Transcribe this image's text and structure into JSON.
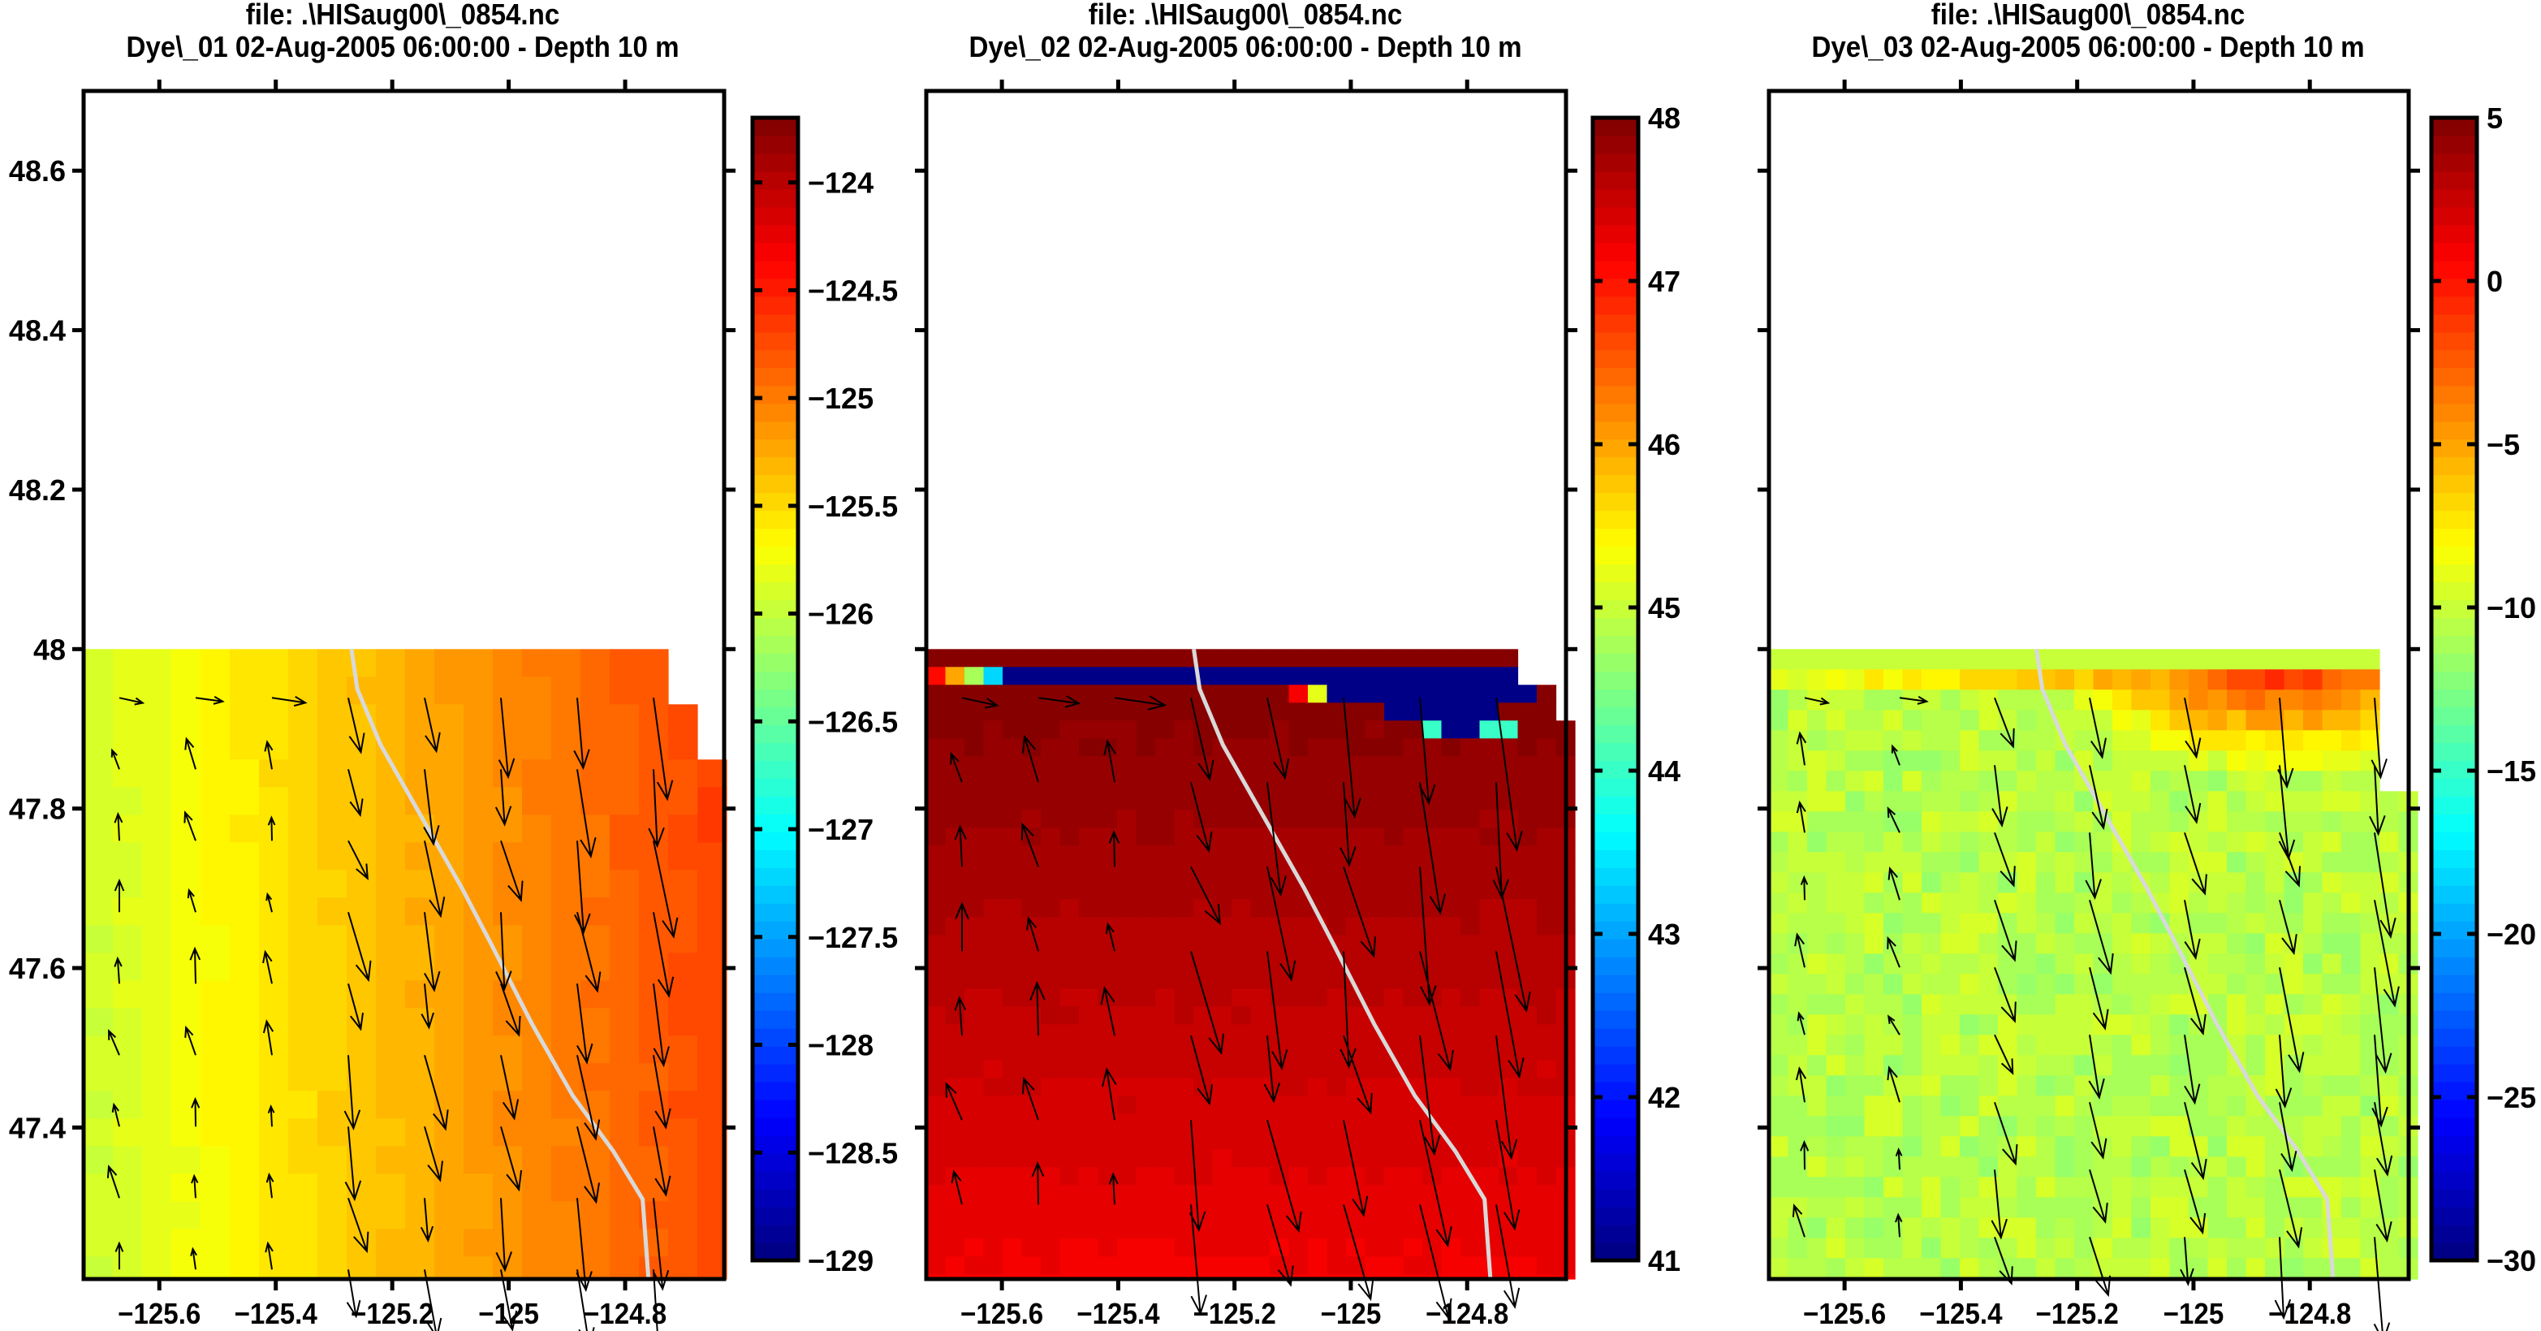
{
  "chart_data": [
    {
      "type": "heatmap",
      "title_line1": "file: .\\HISaug00\\_0854.nc",
      "title_line2": "Dye\\_01 02-Aug-2005 06:00:00  - Depth 10 m",
      "variable": "Dye\\_01",
      "xlabel": "",
      "ylabel": "",
      "xlim": [
        -125.73,
        -124.63
      ],
      "ylim": [
        47.21,
        48.7
      ],
      "xticks": [
        "−125.6",
        "−125.4",
        "−125.2",
        "−125",
        "−124.8"
      ],
      "xtick_values": [
        -125.6,
        -125.4,
        -125.2,
        -125,
        -124.8
      ],
      "yticks": [
        "48.6",
        "48.4",
        "48.2",
        "48",
        "47.8",
        "47.6",
        "47.4"
      ],
      "ytick_values": [
        48.6,
        48.4,
        48.2,
        48.0,
        47.8,
        47.6,
        47.4
      ],
      "colorbar": {
        "range": [
          -129,
          -123.7
        ],
        "tick_values": [
          -124,
          -124.5,
          -125,
          -125.5,
          -126,
          -126.5,
          -127,
          -127.5,
          -128,
          -128.5,
          -129
        ],
        "tick_labels": [
          "−124",
          "−124.5",
          "−125",
          "−125.5",
          "−126",
          "−126.5",
          "−127",
          "−127.5",
          "−128",
          "−128.5",
          "−129"
        ],
        "colormap": "jet"
      },
      "field": {
        "pattern": "west-east gradient",
        "value_west": -125.9,
        "value_east": -124.7,
        "data_top_lat": 48.0
      }
    },
    {
      "type": "heatmap",
      "title_line1": "file: .\\HISaug00\\_0854.nc",
      "title_line2": "Dye\\_02 02-Aug-2005 06:00:00  - Depth 10 m",
      "variable": "Dye\\_02",
      "xlabel": "",
      "ylabel": "",
      "xlim": [
        -125.73,
        -124.63
      ],
      "ylim": [
        47.21,
        48.7
      ],
      "xticks": [
        "−125.6",
        "−125.4",
        "−125.2",
        "−125",
        "−124.8"
      ],
      "xtick_values": [
        -125.6,
        -125.4,
        -125.2,
        -125,
        -124.8
      ],
      "yticks": [],
      "ytick_values": [
        48.6,
        48.4,
        48.2,
        48.0,
        47.8,
        47.6,
        47.4
      ],
      "colorbar": {
        "range": [
          41,
          48
        ],
        "tick_values": [
          48,
          47,
          46,
          45,
          44,
          43,
          42,
          41
        ],
        "tick_labels": [
          "48",
          "47",
          "46",
          "45",
          "44",
          "43",
          "42",
          "41"
        ],
        "colormap": "jet"
      },
      "field": {
        "pattern": "north-south gradient with low-value band along northern edge",
        "value_north": 48.0,
        "value_south": 47.2,
        "band_value": 41.0,
        "data_top_lat": 48.0
      }
    },
    {
      "type": "heatmap",
      "title_line1": "file: .\\HISaug00\\_0854.nc",
      "title_line2": "Dye\\_03 02-Aug-2005 06:00:00  - Depth 10 m",
      "variable": "Dye\\_03",
      "xlabel": "",
      "ylabel": "",
      "xlim": [
        -125.73,
        -124.63
      ],
      "ylim": [
        47.21,
        48.7
      ],
      "xticks": [
        "−125.6",
        "−125.4",
        "−125.2",
        "−125",
        "−124.8"
      ],
      "xtick_values": [
        -125.6,
        -125.4,
        -125.2,
        -125,
        -124.8
      ],
      "yticks": [],
      "ytick_values": [
        48.6,
        48.4,
        48.2,
        48.0,
        47.8,
        47.6,
        47.4
      ],
      "colorbar": {
        "range": [
          -30,
          5
        ],
        "tick_values": [
          5,
          0,
          -5,
          -10,
          -15,
          -20,
          -25,
          -30
        ],
        "tick_labels": [
          "5",
          "0",
          "−5",
          "−10",
          "−15",
          "−20",
          "−25",
          "−30"
        ],
        "colormap": "jet"
      },
      "field": {
        "pattern": "mostly uniform with high values near north-east edge",
        "value_background": -10.5,
        "value_peak": 0.5,
        "data_top_lat": 48.0
      }
    }
  ],
  "overlays": {
    "isobath_color": "#d9d9d9",
    "isobath_lon_lat": [
      [
        -125.27,
        48.0
      ],
      [
        -125.26,
        47.95
      ],
      [
        -125.22,
        47.88
      ],
      [
        -125.15,
        47.79
      ],
      [
        -125.08,
        47.7
      ],
      [
        -125.03,
        47.63
      ],
      [
        -124.96,
        47.53
      ],
      [
        -124.89,
        47.44
      ],
      [
        -124.82,
        47.37
      ],
      [
        -124.77,
        47.31
      ],
      [
        -124.76,
        47.21
      ]
    ],
    "vector_color": "#000000"
  }
}
